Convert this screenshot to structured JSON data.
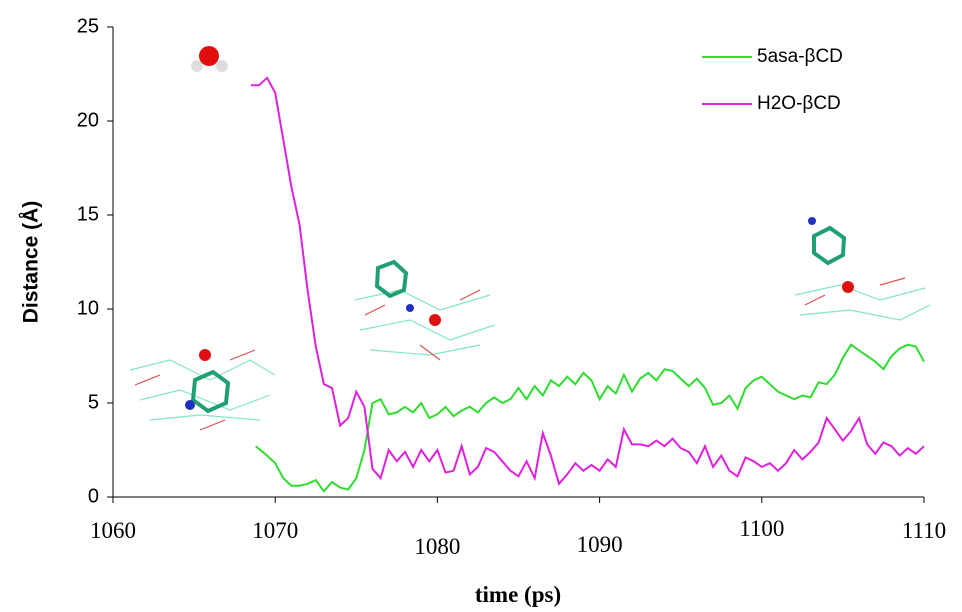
{
  "chart_data": {
    "type": "line",
    "x_label": "time (ps)",
    "y_label": "Distance (Å)",
    "xlim": [
      1060,
      1110
    ],
    "xticks": [
      1060,
      1070,
      1080,
      1090,
      1100,
      1110
    ],
    "ylim": [
      0,
      25
    ],
    "yticks": [
      0,
      5,
      10,
      15,
      20,
      25
    ],
    "grid": false,
    "legend": "upper-right",
    "series": [
      {
        "name": "5asa-βCD",
        "color": "#2fdc2f",
        "x": [
          1068.8,
          1069.5,
          1070,
          1070.5,
          1071,
          1071.5,
          1072,
          1072.5,
          1073,
          1073.5,
          1074,
          1074.5,
          1075,
          1075.5,
          1076,
          1076.5,
          1077,
          1077.5,
          1078,
          1078.5,
          1079,
          1079.5,
          1080,
          1080.5,
          1081,
          1081.5,
          1082,
          1082.5,
          1083,
          1083.5,
          1084,
          1084.5,
          1085,
          1085.5,
          1086,
          1086.5,
          1087,
          1087.5,
          1088,
          1088.5,
          1089,
          1089.5,
          1090,
          1090.5,
          1091,
          1091.5,
          1092,
          1092.5,
          1093,
          1093.5,
          1094,
          1094.5,
          1095,
          1095.5,
          1096,
          1096.5,
          1097,
          1097.5,
          1098,
          1098.5,
          1099,
          1099.5,
          1100,
          1100.5,
          1101,
          1101.5,
          1102,
          1102.5,
          1103,
          1103.5,
          1104,
          1104.5,
          1105,
          1105.5,
          1106,
          1106.5,
          1107,
          1107.5,
          1108,
          1108.5,
          1109,
          1109.5,
          1110
        ],
        "values": [
          2.7,
          2.2,
          1.8,
          1.0,
          0.6,
          0.6,
          0.7,
          0.9,
          0.3,
          0.8,
          0.5,
          0.4,
          1.0,
          2.5,
          5.0,
          5.2,
          4.4,
          4.5,
          4.8,
          4.5,
          5.0,
          4.2,
          4.4,
          4.8,
          4.3,
          4.6,
          4.8,
          4.5,
          5.0,
          5.3,
          5.0,
          5.2,
          5.8,
          5.2,
          5.9,
          5.4,
          6.2,
          5.9,
          6.4,
          6.0,
          6.6,
          6.2,
          5.2,
          5.9,
          5.5,
          6.5,
          5.6,
          6.3,
          6.6,
          6.2,
          6.8,
          6.7,
          6.3,
          5.9,
          6.3,
          5.8,
          4.9,
          5.0,
          5.4,
          4.7,
          5.8,
          6.2,
          6.4,
          6.0,
          5.6,
          5.4,
          5.2,
          5.4,
          5.3,
          6.1,
          6.0,
          6.5,
          7.4,
          8.1,
          7.8,
          7.5,
          7.2,
          6.8,
          7.5,
          7.9,
          8.1,
          8.0,
          7.2
        ]
      },
      {
        "name": "H2O-βCD",
        "color": "#dc22dc",
        "x": [
          1068.5,
          1069,
          1069.5,
          1070,
          1070.5,
          1071,
          1071.5,
          1072,
          1072.5,
          1073,
          1073.5,
          1074,
          1074.5,
          1075,
          1075.5,
          1076,
          1076.5,
          1077,
          1077.5,
          1078,
          1078.5,
          1079,
          1079.5,
          1080,
          1080.5,
          1081,
          1081.5,
          1082,
          1082.5,
          1083,
          1083.5,
          1084,
          1084.5,
          1085,
          1085.5,
          1086,
          1086.5,
          1087,
          1087.5,
          1088,
          1088.5,
          1089,
          1089.5,
          1090,
          1090.5,
          1091,
          1091.5,
          1092,
          1092.5,
          1093,
          1093.5,
          1094,
          1094.5,
          1095,
          1095.5,
          1096,
          1096.5,
          1097,
          1097.5,
          1098,
          1098.5,
          1099,
          1099.5,
          1100,
          1100.5,
          1101,
          1101.5,
          1102,
          1102.5,
          1103,
          1103.5,
          1104,
          1104.5,
          1105,
          1105.5,
          1106,
          1106.5,
          1107,
          1107.5,
          1108,
          1108.5,
          1109,
          1109.5,
          1110
        ],
        "values": [
          21.9,
          21.9,
          22.3,
          21.5,
          19.0,
          16.5,
          14.5,
          11.0,
          8.0,
          6.0,
          5.8,
          3.8,
          4.2,
          5.6,
          4.8,
          1.5,
          1.0,
          2.5,
          1.9,
          2.4,
          1.6,
          2.5,
          1.9,
          2.5,
          1.3,
          1.4,
          2.7,
          1.2,
          1.6,
          2.6,
          2.4,
          1.9,
          1.4,
          1.1,
          1.9,
          1.0,
          3.4,
          2.2,
          0.7,
          1.2,
          1.8,
          1.4,
          1.7,
          1.4,
          2.0,
          1.6,
          3.6,
          2.8,
          2.8,
          2.7,
          3.0,
          2.7,
          3.1,
          2.6,
          2.4,
          1.8,
          2.7,
          1.6,
          2.2,
          1.4,
          1.1,
          2.1,
          1.9,
          1.6,
          1.8,
          1.4,
          1.8,
          2.5,
          2.0,
          2.4,
          2.9,
          4.2,
          3.6,
          3.0,
          3.5,
          4.2,
          2.8,
          2.3,
          2.9,
          2.7,
          2.2,
          2.6,
          2.3,
          2.7
        ]
      }
    ]
  }
}
